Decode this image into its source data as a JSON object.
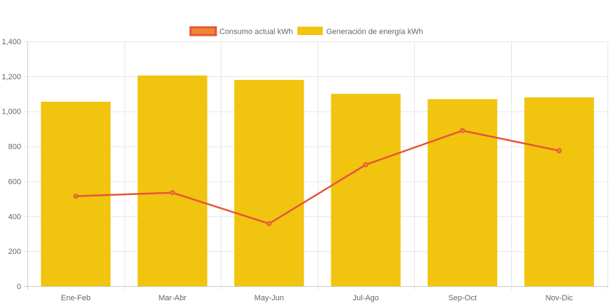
{
  "chart_data": {
    "type": "bar",
    "categories": [
      "Ene-Feb",
      "Mar-Abr",
      "May-Jun",
      "Jul-Ago",
      "Sep-Oct",
      "Nov-Dic"
    ],
    "series": [
      {
        "name": "Consumo actual kWh",
        "type": "line",
        "values": [
          515,
          535,
          358,
          695,
          890,
          775
        ],
        "color": "#e8533a",
        "legend_fill": "#ef8730"
      },
      {
        "name": "Generación de energía kWh",
        "type": "bar",
        "values": [
          1055,
          1205,
          1180,
          1100,
          1070,
          1080
        ],
        "color": "#f1c40f"
      }
    ],
    "ylim": [
      0,
      1400
    ],
    "yticks": [
      0,
      200,
      400,
      600,
      800,
      1000,
      1200,
      1400
    ],
    "ytick_labels": [
      "0",
      "200",
      "400",
      "600",
      "800",
      "1,000",
      "1,200",
      "1,400"
    ],
    "grid": true,
    "legend": "top-center"
  },
  "colors": {
    "grid": "#e6e6e6",
    "axis": "#cccccc",
    "text": "#666666"
  }
}
